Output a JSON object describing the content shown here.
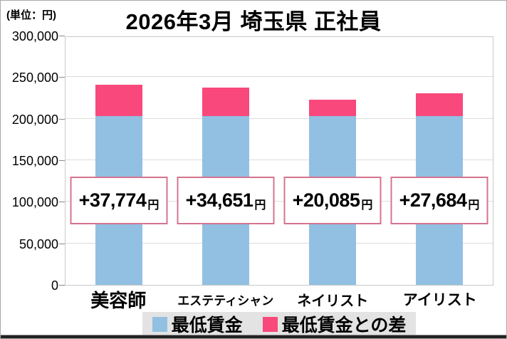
{
  "page": {
    "unit_label": "(単位：円)",
    "title": "2026年3月 埼玉県 正社員"
  },
  "chart_data": {
    "type": "bar",
    "stacked": true,
    "title": "2026年3月 埼玉県 正社員",
    "unit": "円",
    "categories": [
      "美容師",
      "エステティシャン",
      "ネイリスト",
      "アイリスト"
    ],
    "series": [
      {
        "name": "最低賃金",
        "color": "#92c0e2",
        "estimated": true,
        "values": [
          203000,
          203000,
          203000,
          203000
        ]
      },
      {
        "name": "最低賃金との差",
        "color": "#f8487c",
        "values": [
          37774,
          34651,
          20085,
          27684
        ]
      }
    ],
    "bar_labels": [
      "+37,774円",
      "+34,651円",
      "+20,085円",
      "+27,684円"
    ],
    "ylim": [
      0,
      300000
    ],
    "yticks": [
      0,
      50000,
      100000,
      150000,
      200000,
      250000,
      300000
    ],
    "ytick_labels": [
      "0",
      "50,000",
      "100,000",
      "150,000",
      "200,000",
      "250,000",
      "300,000"
    ],
    "grid": true,
    "legend_position": "bottom",
    "colors": {
      "min_wage_bar": "#92c0e2",
      "diff_bar": "#f8487c",
      "diff_box_border": "#d4748f",
      "gridline": "#dcdcdc",
      "legend_background": "#e3e3e3"
    }
  }
}
